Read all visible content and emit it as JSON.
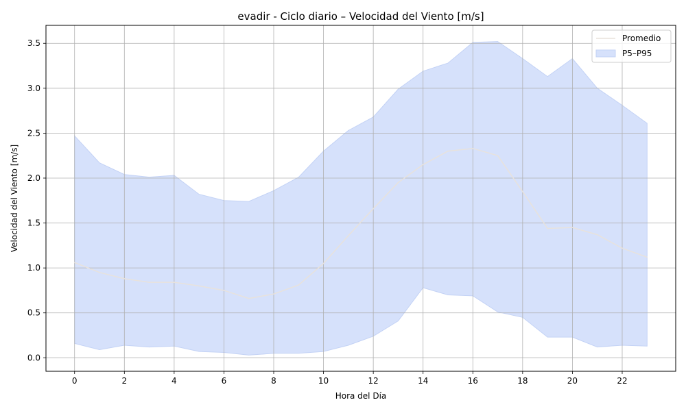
{
  "chart_data": {
    "type": "area",
    "title": "evadir - Ciclo diario – Velocidad del Viento [m/s]",
    "xlabel": "Hora del Día",
    "ylabel": "Velocidad del Viento [m/s]",
    "xlim": [
      -1.15,
      24.15
    ],
    "ylim": [
      -0.15,
      3.7
    ],
    "x_ticks": [
      0,
      2,
      4,
      6,
      8,
      10,
      12,
      14,
      16,
      18,
      20,
      22
    ],
    "y_ticks": [
      0.0,
      0.5,
      1.0,
      1.5,
      2.0,
      2.5,
      3.0,
      3.5
    ],
    "y_tick_labels": [
      "0.0",
      "0.5",
      "1.0",
      "1.5",
      "2.0",
      "2.5",
      "3.0",
      "3.5"
    ],
    "grid": true,
    "legend_position": "top-right",
    "x": [
      0,
      1,
      2,
      3,
      4,
      5,
      6,
      7,
      8,
      9,
      10,
      11,
      12,
      13,
      14,
      15,
      16,
      17,
      18,
      19,
      20,
      21,
      22,
      23
    ],
    "series": [
      {
        "name": "Promedio",
        "kind": "line",
        "color": "#e8e2dc",
        "values": [
          1.06,
          0.95,
          0.88,
          0.84,
          0.84,
          0.8,
          0.75,
          0.66,
          0.71,
          0.81,
          1.05,
          1.36,
          1.66,
          1.95,
          2.15,
          2.3,
          2.33,
          2.25,
          1.85,
          1.44,
          1.45,
          1.37,
          1.22,
          1.12
        ]
      },
      {
        "name": "P5–P95",
        "kind": "band",
        "color": "#d6e1fb",
        "edge_color": "#c3d2f5",
        "lower": [
          0.16,
          0.09,
          0.14,
          0.12,
          0.13,
          0.07,
          0.06,
          0.03,
          0.05,
          0.05,
          0.07,
          0.14,
          0.24,
          0.41,
          0.78,
          0.7,
          0.69,
          0.51,
          0.45,
          0.23,
          0.23,
          0.12,
          0.14,
          0.13
        ],
        "upper": [
          2.47,
          2.17,
          2.04,
          2.01,
          2.03,
          1.82,
          1.75,
          1.74,
          1.86,
          2.01,
          2.3,
          2.53,
          2.68,
          2.99,
          3.19,
          3.28,
          3.51,
          3.52,
          3.33,
          3.13,
          3.33,
          3.0,
          2.81,
          2.61
        ]
      }
    ]
  }
}
